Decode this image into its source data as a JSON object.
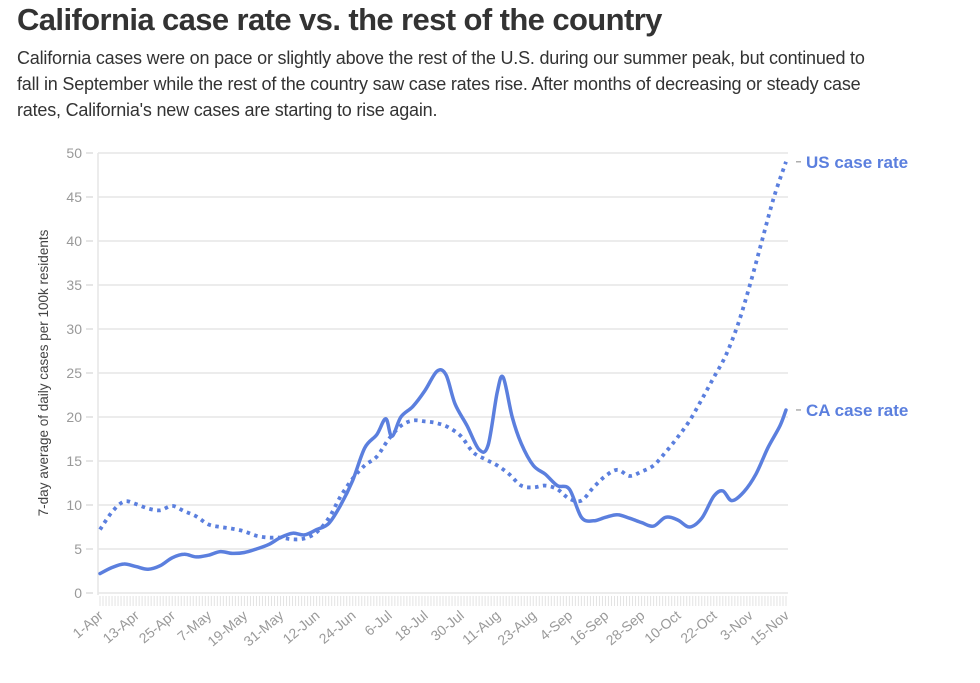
{
  "header": {
    "title": "California case rate vs. the rest of the country",
    "subtitle": "California cases were on pace or slightly above the rest of the U.S. during our summer peak, but continued to fall in September while the rest of the country saw case rates rise. After months of decreasing or steady case rates, California's new cases are starting to rise again."
  },
  "colors": {
    "series": "#5B7FDE",
    "grid": "#e6e6e6",
    "tick_text": "#999999"
  },
  "chart_data": {
    "type": "line",
    "title": "California case rate vs. the rest of the country",
    "xlabel": "",
    "ylabel": "7-day average of daily cases per 100k residents",
    "ylim": [
      0,
      50
    ],
    "yticks": [
      0,
      5,
      10,
      15,
      20,
      25,
      30,
      35,
      40,
      45,
      50
    ],
    "grid": true,
    "x_start_date": "1-Apr",
    "x_unit": "days since 1-Apr",
    "xlim": [
      0,
      228
    ],
    "xticks": [
      {
        "day": 0,
        "label": "1-Apr"
      },
      {
        "day": 12,
        "label": "13-Apr"
      },
      {
        "day": 24,
        "label": "25-Apr"
      },
      {
        "day": 36,
        "label": "7-May"
      },
      {
        "day": 48,
        "label": "19-May"
      },
      {
        "day": 60,
        "label": "31-May"
      },
      {
        "day": 72,
        "label": "12-Jun"
      },
      {
        "day": 84,
        "label": "24-Jun"
      },
      {
        "day": 96,
        "label": "6-Jul"
      },
      {
        "day": 108,
        "label": "18-Jul"
      },
      {
        "day": 120,
        "label": "30-Jul"
      },
      {
        "day": 132,
        "label": "11-Aug"
      },
      {
        "day": 144,
        "label": "23-Aug"
      },
      {
        "day": 156,
        "label": "4-Sep"
      },
      {
        "day": 168,
        "label": "16-Sep"
      },
      {
        "day": 180,
        "label": "28-Sep"
      },
      {
        "day": 192,
        "label": "10-Oct"
      },
      {
        "day": 204,
        "label": "22-Oct"
      },
      {
        "day": 216,
        "label": "3-Nov"
      },
      {
        "day": 228,
        "label": "15-Nov"
      }
    ],
    "legend": "direct-labels-right",
    "series": [
      {
        "name": "US case rate",
        "style": "dotted",
        "x": [
          0,
          4,
          8,
          12,
          16,
          20,
          24,
          28,
          32,
          36,
          40,
          44,
          48,
          52,
          56,
          60,
          64,
          68,
          72,
          76,
          80,
          84,
          88,
          92,
          96,
          100,
          104,
          108,
          112,
          116,
          120,
          124,
          128,
          132,
          136,
          140,
          144,
          148,
          152,
          156,
          160,
          164,
          168,
          172,
          176,
          180,
          184,
          188,
          192,
          196,
          200,
          204,
          208,
          212,
          216,
          220,
          224,
          228
        ],
        "values": [
          7.2,
          9.2,
          10.4,
          10.1,
          9.6,
          9.4,
          9.9,
          9.3,
          8.7,
          7.8,
          7.5,
          7.3,
          7.0,
          6.5,
          6.3,
          6.3,
          6.1,
          6.2,
          6.9,
          8.5,
          11.0,
          13.0,
          14.5,
          15.5,
          17.5,
          19.0,
          19.6,
          19.5,
          19.3,
          18.8,
          17.8,
          16.0,
          15.2,
          14.5,
          13.5,
          12.2,
          12.0,
          12.2,
          11.8,
          10.7,
          10.5,
          12.0,
          13.3,
          14.0,
          13.3,
          13.8,
          14.5,
          16.0,
          17.7,
          19.6,
          22.0,
          24.5,
          27.0,
          30.5,
          35.0,
          40.0,
          45.0,
          49.0
        ]
      },
      {
        "name": "CA case rate",
        "style": "solid",
        "x": [
          0,
          4,
          8,
          12,
          16,
          20,
          24,
          28,
          32,
          36,
          40,
          44,
          48,
          52,
          56,
          60,
          64,
          68,
          72,
          76,
          80,
          84,
          88,
          92,
          95,
          97,
          100,
          104,
          108,
          112,
          115,
          118,
          122,
          126,
          129,
          132,
          134,
          137,
          140,
          144,
          148,
          152,
          156,
          160,
          164,
          168,
          172,
          176,
          180,
          184,
          188,
          192,
          196,
          200,
          204,
          207,
          210,
          214,
          218,
          222,
          226,
          228
        ],
        "values": [
          2.2,
          2.9,
          3.3,
          3.0,
          2.7,
          3.1,
          4.0,
          4.4,
          4.1,
          4.3,
          4.7,
          4.5,
          4.6,
          5.0,
          5.5,
          6.3,
          6.8,
          6.6,
          7.2,
          7.9,
          10.0,
          12.8,
          16.5,
          18.0,
          19.8,
          17.8,
          20.0,
          21.2,
          23.0,
          25.2,
          24.8,
          21.5,
          19.0,
          16.3,
          16.8,
          22.8,
          24.5,
          20.0,
          17.0,
          14.5,
          13.5,
          12.2,
          11.8,
          8.6,
          8.2,
          8.6,
          8.9,
          8.5,
          8.0,
          7.6,
          8.6,
          8.3,
          7.5,
          8.5,
          11.0,
          11.6,
          10.5,
          11.5,
          13.5,
          16.5,
          19.0,
          20.8
        ]
      }
    ]
  }
}
